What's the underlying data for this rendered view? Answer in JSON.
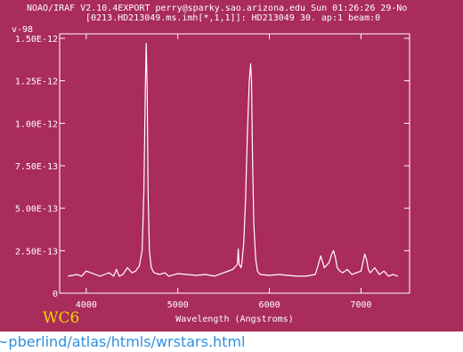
{
  "header": {
    "line1": "NOAO/IRAF V2.10.4EXPORT perry@sparky.sao.arizona.edu Sun 01:26:26 29-No",
    "line2": "[0213.HD213049.ms.imh[*,1,1]]: HD213049 30. ap:1 beam:0"
  },
  "caption": "WC6",
  "url_text": "~pberlind/atlas/htmls/wrstars.html",
  "colors": {
    "panel": "#a92c5a",
    "ink": "#ffffff",
    "caption": "#f5d400",
    "url": "#2f8fe0"
  },
  "chart_data": {
    "type": "line",
    "title": "",
    "corner_label": "v-98",
    "xlabel": "Wavelength (Angstroms)",
    "ylabel": "",
    "xlim": [
      3710,
      7530
    ],
    "ylim": [
      0,
      1.5e-12
    ],
    "x_ticks": [
      4000,
      5000,
      6000,
      7000
    ],
    "x_tick_labels": [
      "4000",
      "5000",
      "6000",
      "7000"
    ],
    "y_ticks": [
      0,
      2.5e-13,
      5e-13,
      7.5e-13,
      1e-12,
      1.25e-12,
      1.5e-12
    ],
    "y_tick_labels": [
      "0",
      "2.50E-13",
      "5.00E-13",
      "7.50E-13",
      "1.00E-12",
      "1.25E-12",
      "1.50E-12"
    ],
    "grid": false,
    "series": [
      {
        "x": [
          3800,
          3850,
          3900,
          3950,
          4000,
          4050,
          4100,
          4150,
          4200,
          4250,
          4300,
          4330,
          4360,
          4400,
          4450,
          4500,
          4540,
          4580,
          4610,
          4630,
          4645,
          4655,
          4665,
          4675,
          4690,
          4710,
          4740,
          4800,
          4860,
          4900,
          5000,
          5100,
          5200,
          5300,
          5400,
          5500,
          5600,
          5650,
          5660,
          5670,
          5690,
          5700,
          5720,
          5740,
          5760,
          5780,
          5795,
          5805,
          5815,
          5830,
          5850,
          5870,
          5900,
          6000,
          6100,
          6200,
          6300,
          6400,
          6500,
          6530,
          6560,
          6600,
          6650,
          6680,
          6700,
          6720,
          6740,
          6770,
          6800,
          6850,
          6900,
          7000,
          7020,
          7040,
          7060,
          7080,
          7100,
          7150,
          7200,
          7250,
          7300,
          7350,
          7400
        ],
        "y": [
          1e-13,
          1.05e-13,
          1.1e-13,
          1e-13,
          1.3e-13,
          1.2e-13,
          1.1e-13,
          1e-13,
          1.1e-13,
          1.2e-13,
          1e-13,
          1.4e-13,
          1e-13,
          1.1e-13,
          1.5e-13,
          1.2e-13,
          1.3e-13,
          1.6e-13,
          2.5e-13,
          6e-13,
          1.2e-12,
          1.47e-12,
          1.2e-12,
          6e-13,
          2.5e-13,
          1.5e-13,
          1.2e-13,
          1.1e-13,
          1.2e-13,
          1e-13,
          1.15e-13,
          1.1e-13,
          1.05e-13,
          1.1e-13,
          1e-13,
          1.2e-13,
          1.4e-13,
          1.7e-13,
          2.6e-13,
          1.7e-13,
          1.5e-13,
          1.8e-13,
          3e-13,
          5.5e-13,
          9.5e-13,
          1.25e-12,
          1.35e-12,
          1.25e-12,
          8e-13,
          4e-13,
          2e-13,
          1.3e-13,
          1.1e-13,
          1.05e-13,
          1.1e-13,
          1.05e-13,
          1e-13,
          1e-13,
          1.1e-13,
          1.6e-13,
          2.2e-13,
          1.5e-13,
          1.8e-13,
          2.3e-13,
          2.5e-13,
          2.1e-13,
          1.5e-13,
          1.3e-13,
          1.2e-13,
          1.4e-13,
          1.1e-13,
          1.3e-13,
          1.8e-13,
          2.3e-13,
          2e-13,
          1.4e-13,
          1.2e-13,
          1.5e-13,
          1.1e-13,
          1.3e-13,
          1e-13,
          1.1e-13,
          1e-13
        ]
      }
    ]
  }
}
